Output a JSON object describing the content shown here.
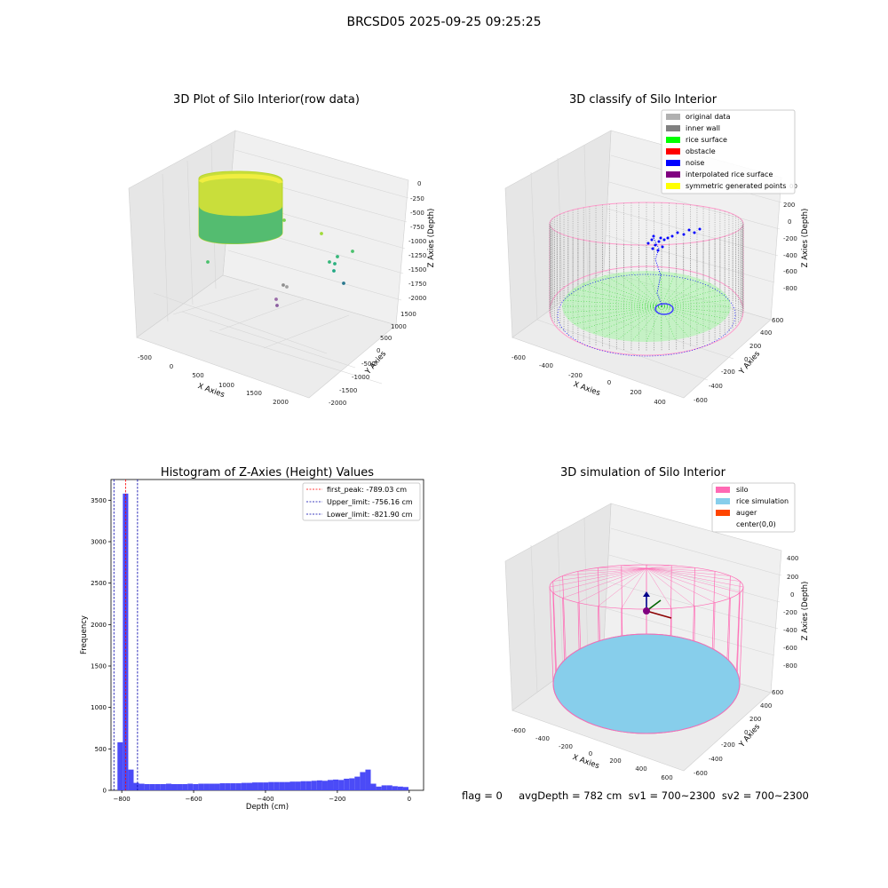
{
  "suptitle": "BRCSD05 2025-09-25 09:25:25",
  "status_line": "flag = 0     avgDepth = 782 cm  sv1 = 700~2300  sv2 = 700~2300",
  "colors": {
    "hist_bar": "#4b4bf7",
    "first_peak": "#ff0000",
    "limits": "#0000aa",
    "silo": "#ff69b4",
    "rice_simulation": "#87ceeb",
    "auger": "#ff4500",
    "original_data": "#b0b0b0",
    "inner_wall": "#808080",
    "rice_surface": "#00ff00",
    "obstacle": "#ff0000",
    "noise": "#0000ff",
    "interpolated_rice_surface": "#800080",
    "symmetric_generated_points": "#ffff00"
  },
  "chart_data": [
    {
      "type": "scatter",
      "title": "3D Plot of Silo Interior(row data)",
      "xlabel": "X Axies",
      "ylabel": "Y Axies",
      "zlabel": "Z Axies (Depth)",
      "xticks": [
        -500,
        0,
        500,
        1000,
        1500,
        2000
      ],
      "yticks": [
        -2000,
        -1500,
        -1000,
        -500,
        0,
        500,
        1000,
        1500
      ],
      "zticks": [
        0,
        -250,
        -500,
        -750,
        -1000,
        -1250,
        -1500,
        -1750,
        -2000
      ],
      "colormap": "viridis",
      "points": [
        {
          "x": 100,
          "y": 500,
          "z": -900
        },
        {
          "x": 600,
          "y": 100,
          "z": -1250
        },
        {
          "x": 1200,
          "y": -900,
          "z": -1400
        },
        {
          "x": 1300,
          "y": -800,
          "z": -1300
        },
        {
          "x": 1400,
          "y": -800,
          "z": -1500
        },
        {
          "x": 1600,
          "y": -1000,
          "z": -1700
        },
        {
          "x": 900,
          "y": -500,
          "z": -1000
        },
        {
          "x": 500,
          "y": -900,
          "z": -1900
        },
        {
          "x": 600,
          "y": -1000,
          "z": -2000
        }
      ]
    },
    {
      "type": "scatter",
      "title": "3D classify of Silo Interior",
      "xlabel": "X Axies",
      "ylabel": "Y Axies",
      "zlabel": "Z Axies (Depth)",
      "xticks": [
        -600,
        -400,
        -200,
        0,
        200,
        400,
        600
      ],
      "yticks": [
        -600,
        -400,
        -200,
        0,
        200,
        400,
        600
      ],
      "zticks": [
        200,
        0,
        -200,
        -400,
        -600,
        -800
      ],
      "zticks_partial": [
        "00"
      ],
      "legend": [
        "original data",
        "inner wall",
        "rice surface",
        "obstacle",
        "noise",
        "interpolated rice surface",
        "symmetric generated points"
      ],
      "legend_loc": "upper right"
    },
    {
      "type": "bar",
      "title": "Histogram of Z-Axies (Height) Values",
      "xlabel": "Depth (cm)",
      "ylabel": "Frequency",
      "xlim": [
        -830,
        40
      ],
      "ylim": [
        0,
        3750
      ],
      "xticks": [
        -800,
        -600,
        -400,
        -200,
        0
      ],
      "yticks": [
        0,
        500,
        1000,
        1500,
        2000,
        2500,
        3000,
        3500
      ],
      "bins": [
        {
          "x0": -812,
          "x1": -797,
          "count": 580
        },
        {
          "x0": -797,
          "x1": -782,
          "count": 3580
        },
        {
          "x0": -782,
          "x1": -767,
          "count": 250
        },
        {
          "x0": -767,
          "x1": -752,
          "count": 90
        },
        {
          "x0": -752,
          "x1": -737,
          "count": 80
        },
        {
          "x0": -737,
          "x1": -722,
          "count": 75
        },
        {
          "x0": -722,
          "x1": -707,
          "count": 75
        },
        {
          "x0": -707,
          "x1": -692,
          "count": 75
        },
        {
          "x0": -692,
          "x1": -677,
          "count": 75
        },
        {
          "x0": -677,
          "x1": -662,
          "count": 80
        },
        {
          "x0": -662,
          "x1": -647,
          "count": 75
        },
        {
          "x0": -647,
          "x1": -632,
          "count": 75
        },
        {
          "x0": -632,
          "x1": -617,
          "count": 75
        },
        {
          "x0": -617,
          "x1": -602,
          "count": 80
        },
        {
          "x0": -602,
          "x1": -587,
          "count": 75
        },
        {
          "x0": -587,
          "x1": -572,
          "count": 80
        },
        {
          "x0": -572,
          "x1": -557,
          "count": 80
        },
        {
          "x0": -557,
          "x1": -542,
          "count": 80
        },
        {
          "x0": -542,
          "x1": -527,
          "count": 80
        },
        {
          "x0": -527,
          "x1": -512,
          "count": 85
        },
        {
          "x0": -512,
          "x1": -497,
          "count": 85
        },
        {
          "x0": -497,
          "x1": -482,
          "count": 85
        },
        {
          "x0": -482,
          "x1": -467,
          "count": 85
        },
        {
          "x0": -467,
          "x1": -452,
          "count": 90
        },
        {
          "x0": -452,
          "x1": -437,
          "count": 90
        },
        {
          "x0": -437,
          "x1": -422,
          "count": 95
        },
        {
          "x0": -422,
          "x1": -407,
          "count": 95
        },
        {
          "x0": -407,
          "x1": -392,
          "count": 95
        },
        {
          "x0": -392,
          "x1": -377,
          "count": 100
        },
        {
          "x0": -377,
          "x1": -362,
          "count": 100
        },
        {
          "x0": -362,
          "x1": -347,
          "count": 100
        },
        {
          "x0": -347,
          "x1": -332,
          "count": 100
        },
        {
          "x0": -332,
          "x1": -317,
          "count": 105
        },
        {
          "x0": -317,
          "x1": -302,
          "count": 105
        },
        {
          "x0": -302,
          "x1": -287,
          "count": 110
        },
        {
          "x0": -287,
          "x1": -272,
          "count": 110
        },
        {
          "x0": -272,
          "x1": -257,
          "count": 115
        },
        {
          "x0": -257,
          "x1": -242,
          "count": 120
        },
        {
          "x0": -242,
          "x1": -227,
          "count": 115
        },
        {
          "x0": -227,
          "x1": -212,
          "count": 125
        },
        {
          "x0": -212,
          "x1": -197,
          "count": 130
        },
        {
          "x0": -197,
          "x1": -182,
          "count": 125
        },
        {
          "x0": -182,
          "x1": -167,
          "count": 140
        },
        {
          "x0": -167,
          "x1": -152,
          "count": 145
        },
        {
          "x0": -152,
          "x1": -137,
          "count": 165
        },
        {
          "x0": -137,
          "x1": -122,
          "count": 220
        },
        {
          "x0": -122,
          "x1": -107,
          "count": 250
        },
        {
          "x0": -107,
          "x1": -92,
          "count": 80
        },
        {
          "x0": -92,
          "x1": -77,
          "count": 45
        },
        {
          "x0": -77,
          "x1": -62,
          "count": 60
        },
        {
          "x0": -62,
          "x1": -47,
          "count": 60
        },
        {
          "x0": -47,
          "x1": -32,
          "count": 50
        },
        {
          "x0": -32,
          "x1": -17,
          "count": 45
        },
        {
          "x0": -17,
          "x1": -2,
          "count": 40
        }
      ],
      "vlines": [
        {
          "label": "first_peak: -789.03 cm",
          "x": -789.03,
          "color": "#ff0000"
        },
        {
          "label": "Upper_limit: -756.16 cm",
          "x": -756.16,
          "color": "#0000aa"
        },
        {
          "label": "Lower_limit: -821.90 cm",
          "x": -821.9,
          "color": "#0000aa"
        }
      ],
      "legend_loc": "upper right"
    },
    {
      "type": "scatter",
      "title": "3D simulation of Silo Interior",
      "xlabel": "X Axies",
      "ylabel": "Y Axies",
      "zlabel": "Z Axies (Depth)",
      "xticks": [
        -600,
        -400,
        -200,
        0,
        200,
        400,
        600
      ],
      "yticks": [
        -600,
        -400,
        -200,
        0,
        200,
        400,
        600
      ],
      "zticks": [
        400,
        200,
        0,
        -200,
        -400,
        -600,
        -800
      ],
      "legend": [
        "silo",
        "rice simulation",
        "auger",
        "center(0,0)"
      ],
      "legend_loc": "upper right"
    }
  ]
}
